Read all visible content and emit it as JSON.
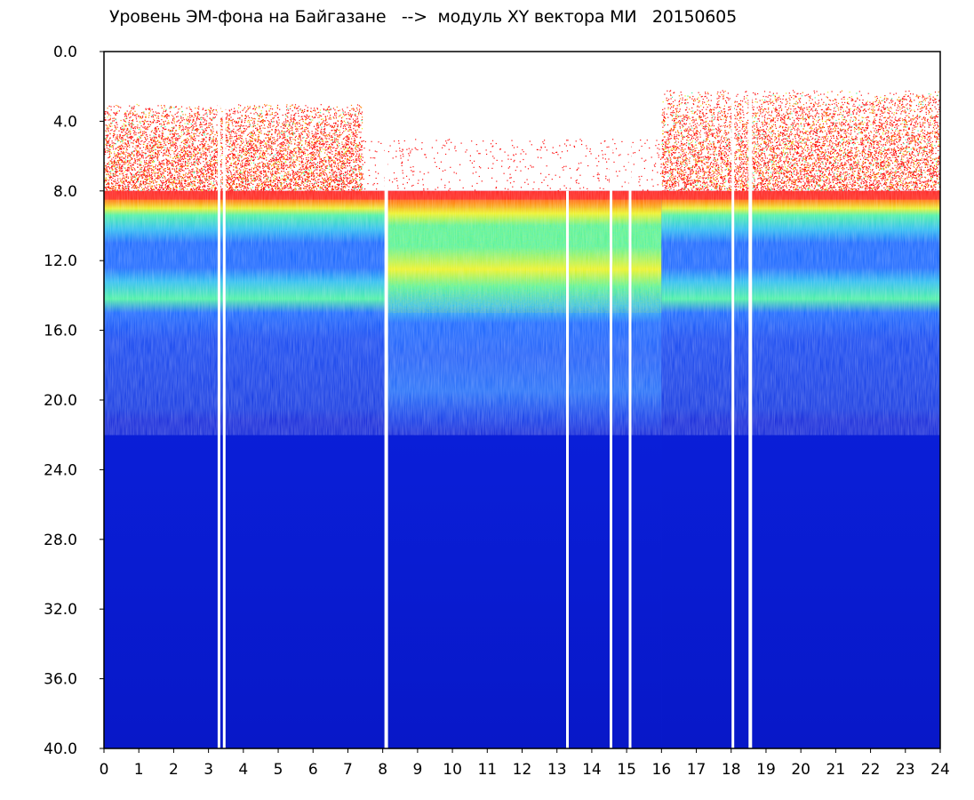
{
  "title": "Уровень ЭМ-фона на Байгазане   -->  модуль XY вектора МИ   20150605",
  "chart_data": {
    "type": "heatmap",
    "title": "Уровень ЭМ-фона на Байгазане   -->  модуль XY вектора МИ   20150605",
    "xlabel": "",
    "ylabel": "",
    "xlim": [
      0,
      24
    ],
    "ylim": [
      0,
      40
    ],
    "y_inverted": true,
    "x_ticks": [
      "0",
      "1",
      "2",
      "3",
      "4",
      "5",
      "6",
      "7",
      "8",
      "9",
      "10",
      "11",
      "12",
      "13",
      "14",
      "15",
      "16",
      "17",
      "18",
      "19",
      "20",
      "21",
      "22",
      "23",
      "24"
    ],
    "y_ticks": [
      "0.0",
      "4.0",
      "8.0",
      "12.0",
      "16.0",
      "20.0",
      "24.0",
      "28.0",
      "32.0",
      "36.0",
      "40.0"
    ],
    "colormap": [
      "#0a1fd8",
      "#1060ff",
      "#20b8f0",
      "#40f0a0",
      "#e8f020",
      "#ff8000",
      "#ff1010"
    ],
    "data_gaps_hours": [
      3.3,
      3.45,
      8.1,
      13.3,
      14.55,
      15.1,
      18.05,
      18.55
    ],
    "bands": [
      {
        "y_range": [
          2.5,
          8.0
        ],
        "level": "high-red",
        "present_hours": [
          [
            0,
            7.5
          ],
          [
            16.0,
            24
          ]
        ]
      },
      {
        "y_range": [
          8.0,
          9.5
        ],
        "level": "red-yellow"
      },
      {
        "y_range": [
          9.5,
          15.0
        ],
        "level": "cyan-green"
      },
      {
        "y_range": [
          15.0,
          21.0
        ],
        "level": "blue-cyan"
      },
      {
        "y_range": [
          21.0,
          40.0
        ],
        "level": "deep-blue"
      }
    ],
    "grid": false,
    "legend": "none"
  }
}
